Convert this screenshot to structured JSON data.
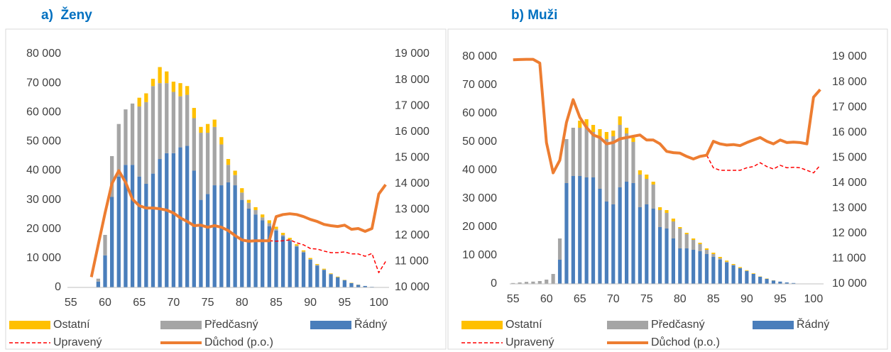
{
  "chart_data": [
    {
      "type": "bar",
      "title": "a)  Ženy",
      "stacked": true,
      "x": [
        55,
        56,
        57,
        58,
        59,
        60,
        61,
        62,
        63,
        64,
        65,
        66,
        67,
        68,
        69,
        70,
        71,
        72,
        73,
        74,
        75,
        76,
        77,
        78,
        79,
        80,
        81,
        82,
        83,
        84,
        85,
        86,
        87,
        88,
        89,
        90,
        91,
        92,
        93,
        94,
        95,
        96,
        97,
        98,
        99,
        100,
        101
      ],
      "xlim": [
        54.5,
        101.5
      ],
      "xticks": [
        55,
        60,
        65,
        70,
        75,
        80,
        85,
        90,
        95,
        100
      ],
      "ylim": [
        0,
        80000
      ],
      "yticks": [
        0,
        {
          "value": 10000,
          "label": "10 000"
        },
        {
          "value": 20000,
          "label": "20 000"
        },
        {
          "value": 30000,
          "label": "30 000"
        },
        {
          "value": 40000,
          "label": "40 000"
        },
        {
          "value": 50000,
          "label": "50 000"
        },
        {
          "value": 60000,
          "label": "60 000"
        },
        {
          "value": 70000,
          "label": "70 000"
        },
        {
          "value": 80000,
          "label": "80 000"
        }
      ],
      "y2lim": [
        10000,
        19000
      ],
      "y2ticks": [
        {
          "value": 10000,
          "label": "10 000"
        },
        {
          "value": 11000,
          "label": "11 000"
        },
        {
          "value": 12000,
          "label": "12 000"
        },
        {
          "value": 13000,
          "label": "13 000"
        },
        {
          "value": 14000,
          "label": "14 000"
        },
        {
          "value": 15000,
          "label": "15 000"
        },
        {
          "value": 16000,
          "label": "16 000"
        },
        {
          "value": 17000,
          "label": "17 000"
        },
        {
          "value": 18000,
          "label": "18 000"
        },
        {
          "value": 19000,
          "label": "19 000"
        }
      ],
      "series": [
        {
          "name": "Ostatní",
          "type": "bar",
          "color": "#ffc000",
          "values": [
            null,
            null,
            null,
            null,
            0,
            0,
            0,
            0,
            0,
            0,
            3000,
            3000,
            2500,
            5500,
            4000,
            3500,
            4500,
            3000,
            3500,
            2000,
            3000,
            2500,
            2500,
            2000,
            1500,
            1500,
            1000,
            1000,
            1000,
            1000,
            800,
            700,
            600,
            500,
            400,
            400,
            300,
            300,
            200,
            200,
            100,
            100,
            50,
            0,
            0,
            0,
            null
          ]
        },
        {
          "name": "Předčasný",
          "type": "bar",
          "color": "#a5a5a5",
          "values": [
            null,
            null,
            null,
            null,
            1000,
            7000,
            14000,
            18000,
            19000,
            21000,
            24000,
            28000,
            30000,
            26000,
            24000,
            21000,
            17500,
            17500,
            18000,
            23000,
            21000,
            20000,
            14000,
            6000,
            3500,
            2500,
            2000,
            1500,
            1000,
            1000,
            500,
            500,
            400,
            300,
            300,
            200,
            200,
            100,
            100,
            0,
            0,
            0,
            0,
            0,
            0,
            0,
            null
          ]
        },
        {
          "name": "Řádný",
          "type": "bar",
          "color": "#4a7ebb",
          "values": [
            null,
            null,
            null,
            null,
            2000,
            11000,
            31000,
            38000,
            42000,
            42000,
            38000,
            35500,
            39000,
            44000,
            46000,
            46000,
            48000,
            48500,
            40000,
            30000,
            32000,
            35000,
            35000,
            36000,
            35000,
            30000,
            27000,
            25000,
            23000,
            21000,
            19500,
            17500,
            16000,
            14000,
            12000,
            9500,
            7500,
            6000,
            4500,
            3500,
            2500,
            1500,
            900,
            500,
            200,
            100,
            null
          ]
        },
        {
          "name": "Upravený",
          "type": "line",
          "axis": "y2",
          "color": "#ff0000",
          "line_style": "dashed",
          "values": [
            null,
            null,
            null,
            null,
            null,
            null,
            null,
            null,
            null,
            null,
            null,
            null,
            null,
            null,
            null,
            null,
            null,
            null,
            null,
            null,
            null,
            null,
            null,
            null,
            null,
            null,
            null,
            null,
            null,
            11800,
            11780,
            11800,
            11830,
            11720,
            11640,
            11500,
            11480,
            11400,
            11340,
            11340,
            11370,
            11290,
            11290,
            11200,
            11310,
            10570,
            11000
          ]
        },
        {
          "name": "Důchod (p.o.)",
          "type": "line",
          "axis": "y2",
          "color": "#ed7d31",
          "line_style": "solid",
          "values": [
            null,
            null,
            null,
            10400,
            11650,
            12870,
            14000,
            14500,
            14050,
            13400,
            13150,
            13060,
            13060,
            13030,
            12980,
            12870,
            12680,
            12540,
            12380,
            12400,
            12320,
            12380,
            12320,
            12190,
            12000,
            11830,
            11780,
            11800,
            11800,
            11800,
            12730,
            12810,
            12840,
            12810,
            12730,
            12620,
            12540,
            12430,
            12380,
            12350,
            12400,
            12240,
            12270,
            12160,
            12270,
            13600,
            13960
          ]
        }
      ]
    },
    {
      "type": "bar",
      "title": "b) Muži",
      "stacked": true,
      "x": [
        55,
        56,
        57,
        58,
        59,
        60,
        61,
        62,
        63,
        64,
        65,
        66,
        67,
        68,
        69,
        70,
        71,
        72,
        73,
        74,
        75,
        76,
        77,
        78,
        79,
        80,
        81,
        82,
        83,
        84,
        85,
        86,
        87,
        88,
        89,
        90,
        91,
        92,
        93,
        94,
        95,
        96,
        97,
        98,
        99,
        100,
        101
      ],
      "xlim": [
        54.5,
        101.5
      ],
      "xticks": [
        55,
        60,
        65,
        70,
        75,
        80,
        85,
        90,
        95,
        100
      ],
      "ylim": [
        0,
        80000
      ],
      "yticks": [
        0,
        {
          "value": 10000,
          "label": "10 000"
        },
        {
          "value": 20000,
          "label": "20 000"
        },
        {
          "value": 30000,
          "label": "30 000"
        },
        {
          "value": 40000,
          "label": "40 000"
        },
        {
          "value": 50000,
          "label": "50 000"
        },
        {
          "value": 60000,
          "label": "60 000"
        },
        {
          "value": 70000,
          "label": "70 000"
        },
        {
          "value": 80000,
          "label": "80 000"
        }
      ],
      "y2lim": [
        10000,
        19000
      ],
      "y2ticks": [
        {
          "value": 10000,
          "label": "10 000"
        },
        {
          "value": 11000,
          "label": "11 000"
        },
        {
          "value": 12000,
          "label": "12 000"
        },
        {
          "value": 13000,
          "label": "13 000"
        },
        {
          "value": 14000,
          "label": "14 000"
        },
        {
          "value": 15000,
          "label": "15 000"
        },
        {
          "value": 16000,
          "label": "16 000"
        },
        {
          "value": 17000,
          "label": "17 000"
        },
        {
          "value": 18000,
          "label": "18 000"
        },
        {
          "value": 19000,
          "label": "19 000"
        }
      ],
      "series": [
        {
          "name": "Ostatní",
          "type": "bar",
          "color": "#ffc000",
          "values": [
            0,
            0,
            0,
            0,
            0,
            0,
            0,
            0,
            0,
            0,
            2500,
            2500,
            2500,
            2500,
            2500,
            2000,
            3000,
            2000,
            1500,
            1500,
            1500,
            1000,
            1000,
            1000,
            1000,
            500,
            500,
            500,
            500,
            500,
            500,
            500,
            400,
            300,
            300,
            200,
            200,
            100,
            100,
            50,
            0,
            0,
            0,
            0,
            null,
            null,
            null
          ]
        },
        {
          "name": "Předčasný",
          "type": "bar",
          "color": "#a5a5a5",
          "values": [
            300,
            500,
            700,
            800,
            1000,
            1500,
            3500,
            7500,
            15500,
            17000,
            17000,
            18000,
            16000,
            18500,
            22000,
            24000,
            22000,
            17000,
            14500,
            11500,
            9000,
            8500,
            6000,
            5500,
            6000,
            7000,
            5000,
            3500,
            2500,
            1500,
            1000,
            500,
            300,
            200,
            100,
            100,
            0,
            0,
            0,
            0,
            0,
            0,
            0,
            0,
            null,
            null,
            null
          ]
        },
        {
          "name": "Řádný",
          "type": "bar",
          "color": "#4a7ebb",
          "values": [
            0,
            0,
            0,
            0,
            0,
            0,
            0,
            8500,
            35500,
            38000,
            38000,
            37500,
            37500,
            33500,
            29000,
            28000,
            34000,
            36000,
            35500,
            27000,
            28000,
            26500,
            20000,
            19500,
            16000,
            12500,
            12500,
            12000,
            11500,
            10500,
            9500,
            8500,
            7500,
            6500,
            5500,
            4500,
            3500,
            2500,
            1800,
            1200,
            800,
            500,
            300,
            100,
            null,
            null,
            null
          ]
        },
        {
          "name": "Upravený",
          "type": "line",
          "axis": "y2",
          "color": "#ff0000",
          "line_style": "dashed",
          "values": [
            null,
            null,
            null,
            null,
            null,
            null,
            null,
            null,
            null,
            null,
            null,
            null,
            null,
            null,
            null,
            null,
            null,
            null,
            null,
            null,
            null,
            null,
            null,
            null,
            null,
            null,
            null,
            null,
            null,
            15100,
            14600,
            14500,
            14500,
            14500,
            14500,
            14600,
            14650,
            14800,
            14650,
            14550,
            14700,
            14600,
            14620,
            14600,
            14500,
            14400,
            14700
          ]
        },
        {
          "name": "Důchod (p.o.)",
          "type": "line",
          "axis": "y2",
          "color": "#ed7d31",
          "line_style": "solid",
          "values": [
            18880,
            18890,
            18900,
            18900,
            18750,
            15600,
            14400,
            14900,
            16400,
            17300,
            16600,
            16200,
            15900,
            15800,
            15550,
            15600,
            15750,
            15800,
            15850,
            15900,
            15700,
            15700,
            15550,
            15250,
            15200,
            15180,
            15050,
            14950,
            15050,
            15100,
            15650,
            15550,
            15500,
            15520,
            15480,
            15600,
            15700,
            15800,
            15650,
            15550,
            15700,
            15600,
            15620,
            15600,
            15550,
            17400,
            17700
          ]
        }
      ]
    }
  ]
}
